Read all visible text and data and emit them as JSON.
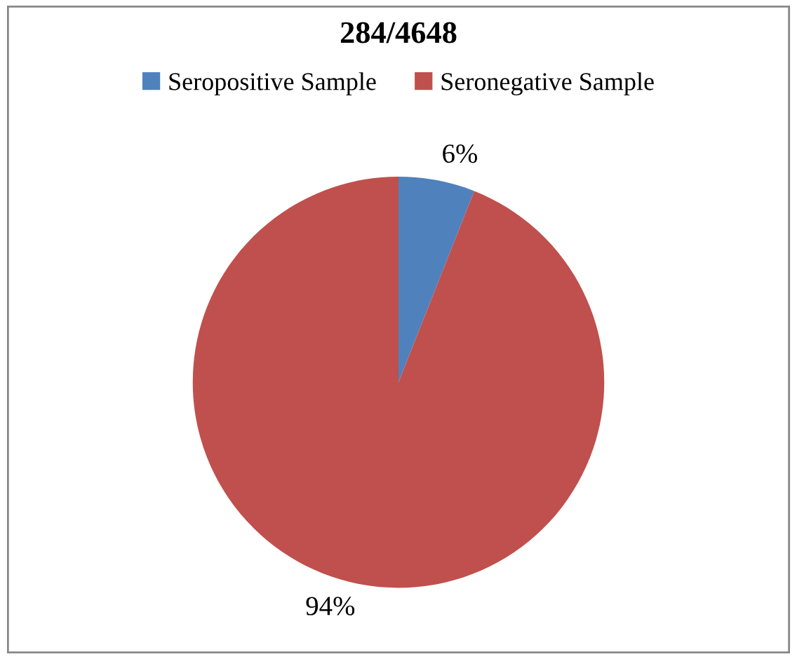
{
  "chart_data": {
    "type": "pie",
    "title": "284/4648",
    "categories": [
      "Seropositive Sample",
      "Seronegative Sample"
    ],
    "values": [
      6,
      94
    ],
    "colors": [
      "#4f81bd",
      "#c0504d"
    ],
    "value_labels": [
      "6%",
      "94%"
    ],
    "legend": "top"
  }
}
